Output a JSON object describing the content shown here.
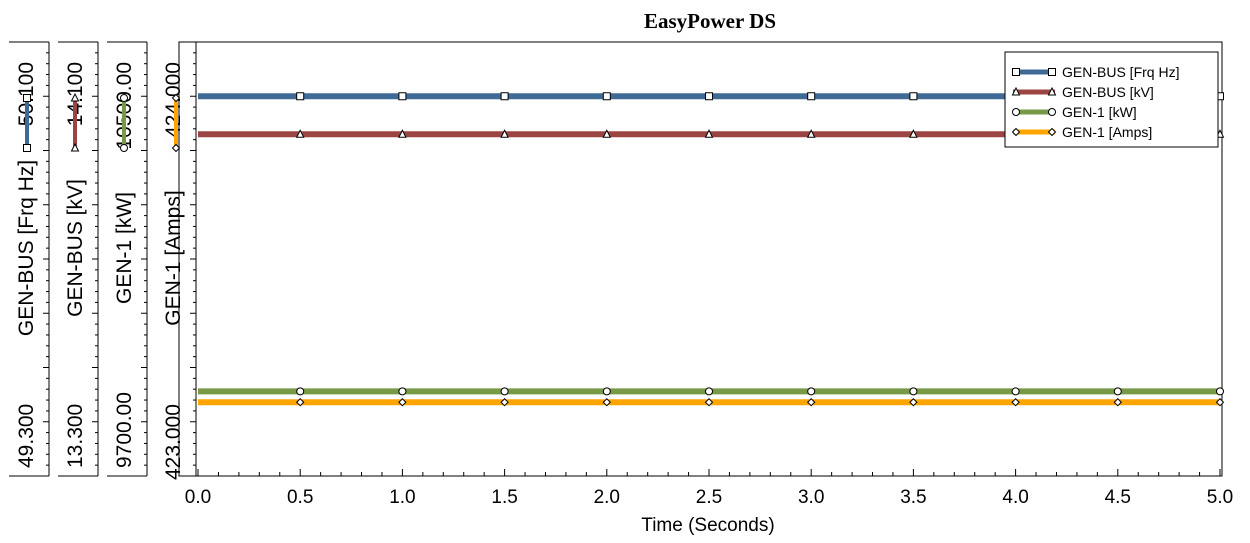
{
  "chart_data": {
    "type": "line",
    "title": "EasyPower DS",
    "xlabel": "Time (Seconds)",
    "xlim": [
      0,
      5
    ],
    "x_ticks": [
      "0.0",
      "0.5",
      "1.0",
      "1.5",
      "2.0",
      "2.5",
      "3.0",
      "3.5",
      "4.0",
      "4.5",
      "5.0"
    ],
    "x": [
      0,
      0.5,
      1.0,
      1.5,
      2.0,
      2.5,
      3.0,
      3.5,
      4.0,
      4.5,
      5.0
    ],
    "grid": false,
    "legend_position": "top-right",
    "y_axes": [
      {
        "label": "GEN-BUS [Frq Hz]",
        "top_label": "50.100",
        "bottom_label": "49.300",
        "ylim": [
          49.3,
          50.1
        ]
      },
      {
        "label": "GEN-BUS [kV]",
        "top_label": "14.100",
        "bottom_label": "13.300",
        "ylim": [
          13.3,
          14.1
        ]
      },
      {
        "label": "GEN-1 [kW]",
        "top_label": "10500.00",
        "bottom_label": "9700.00",
        "ylim": [
          9700,
          10500
        ]
      },
      {
        "label": "GEN-1 [Amps]",
        "top_label": "424.000",
        "bottom_label": "423.000",
        "ylim": [
          423.0,
          424.0
        ]
      }
    ],
    "series": [
      {
        "name": "GEN-BUS [Frq Hz]",
        "axis": 0,
        "color": "#3e6a95",
        "marker": "square",
        "values": [
          50.0,
          50.0,
          50.0,
          50.0,
          50.0,
          50.0,
          50.0,
          50.0,
          50.0,
          50.0,
          50.0
        ]
      },
      {
        "name": "GEN-BUS [kV]",
        "axis": 1,
        "color": "#9b4542",
        "marker": "triangle",
        "values": [
          13.93,
          13.93,
          13.93,
          13.93,
          13.93,
          13.93,
          13.93,
          13.93,
          13.93,
          13.93,
          13.93
        ]
      },
      {
        "name": "GEN-1 [kW]",
        "axis": 2,
        "color": "#769a45",
        "marker": "circle",
        "values": [
          9856,
          9856,
          9856,
          9856,
          9856,
          9856,
          9856,
          9856,
          9856,
          9856,
          9856
        ]
      },
      {
        "name": "GEN-1 [Amps]",
        "axis": 3,
        "color": "#ffa500",
        "marker": "diamond",
        "values": [
          423.17,
          423.17,
          423.17,
          423.17,
          423.17,
          423.17,
          423.17,
          423.17,
          423.17,
          423.17,
          423.17
        ]
      }
    ]
  }
}
